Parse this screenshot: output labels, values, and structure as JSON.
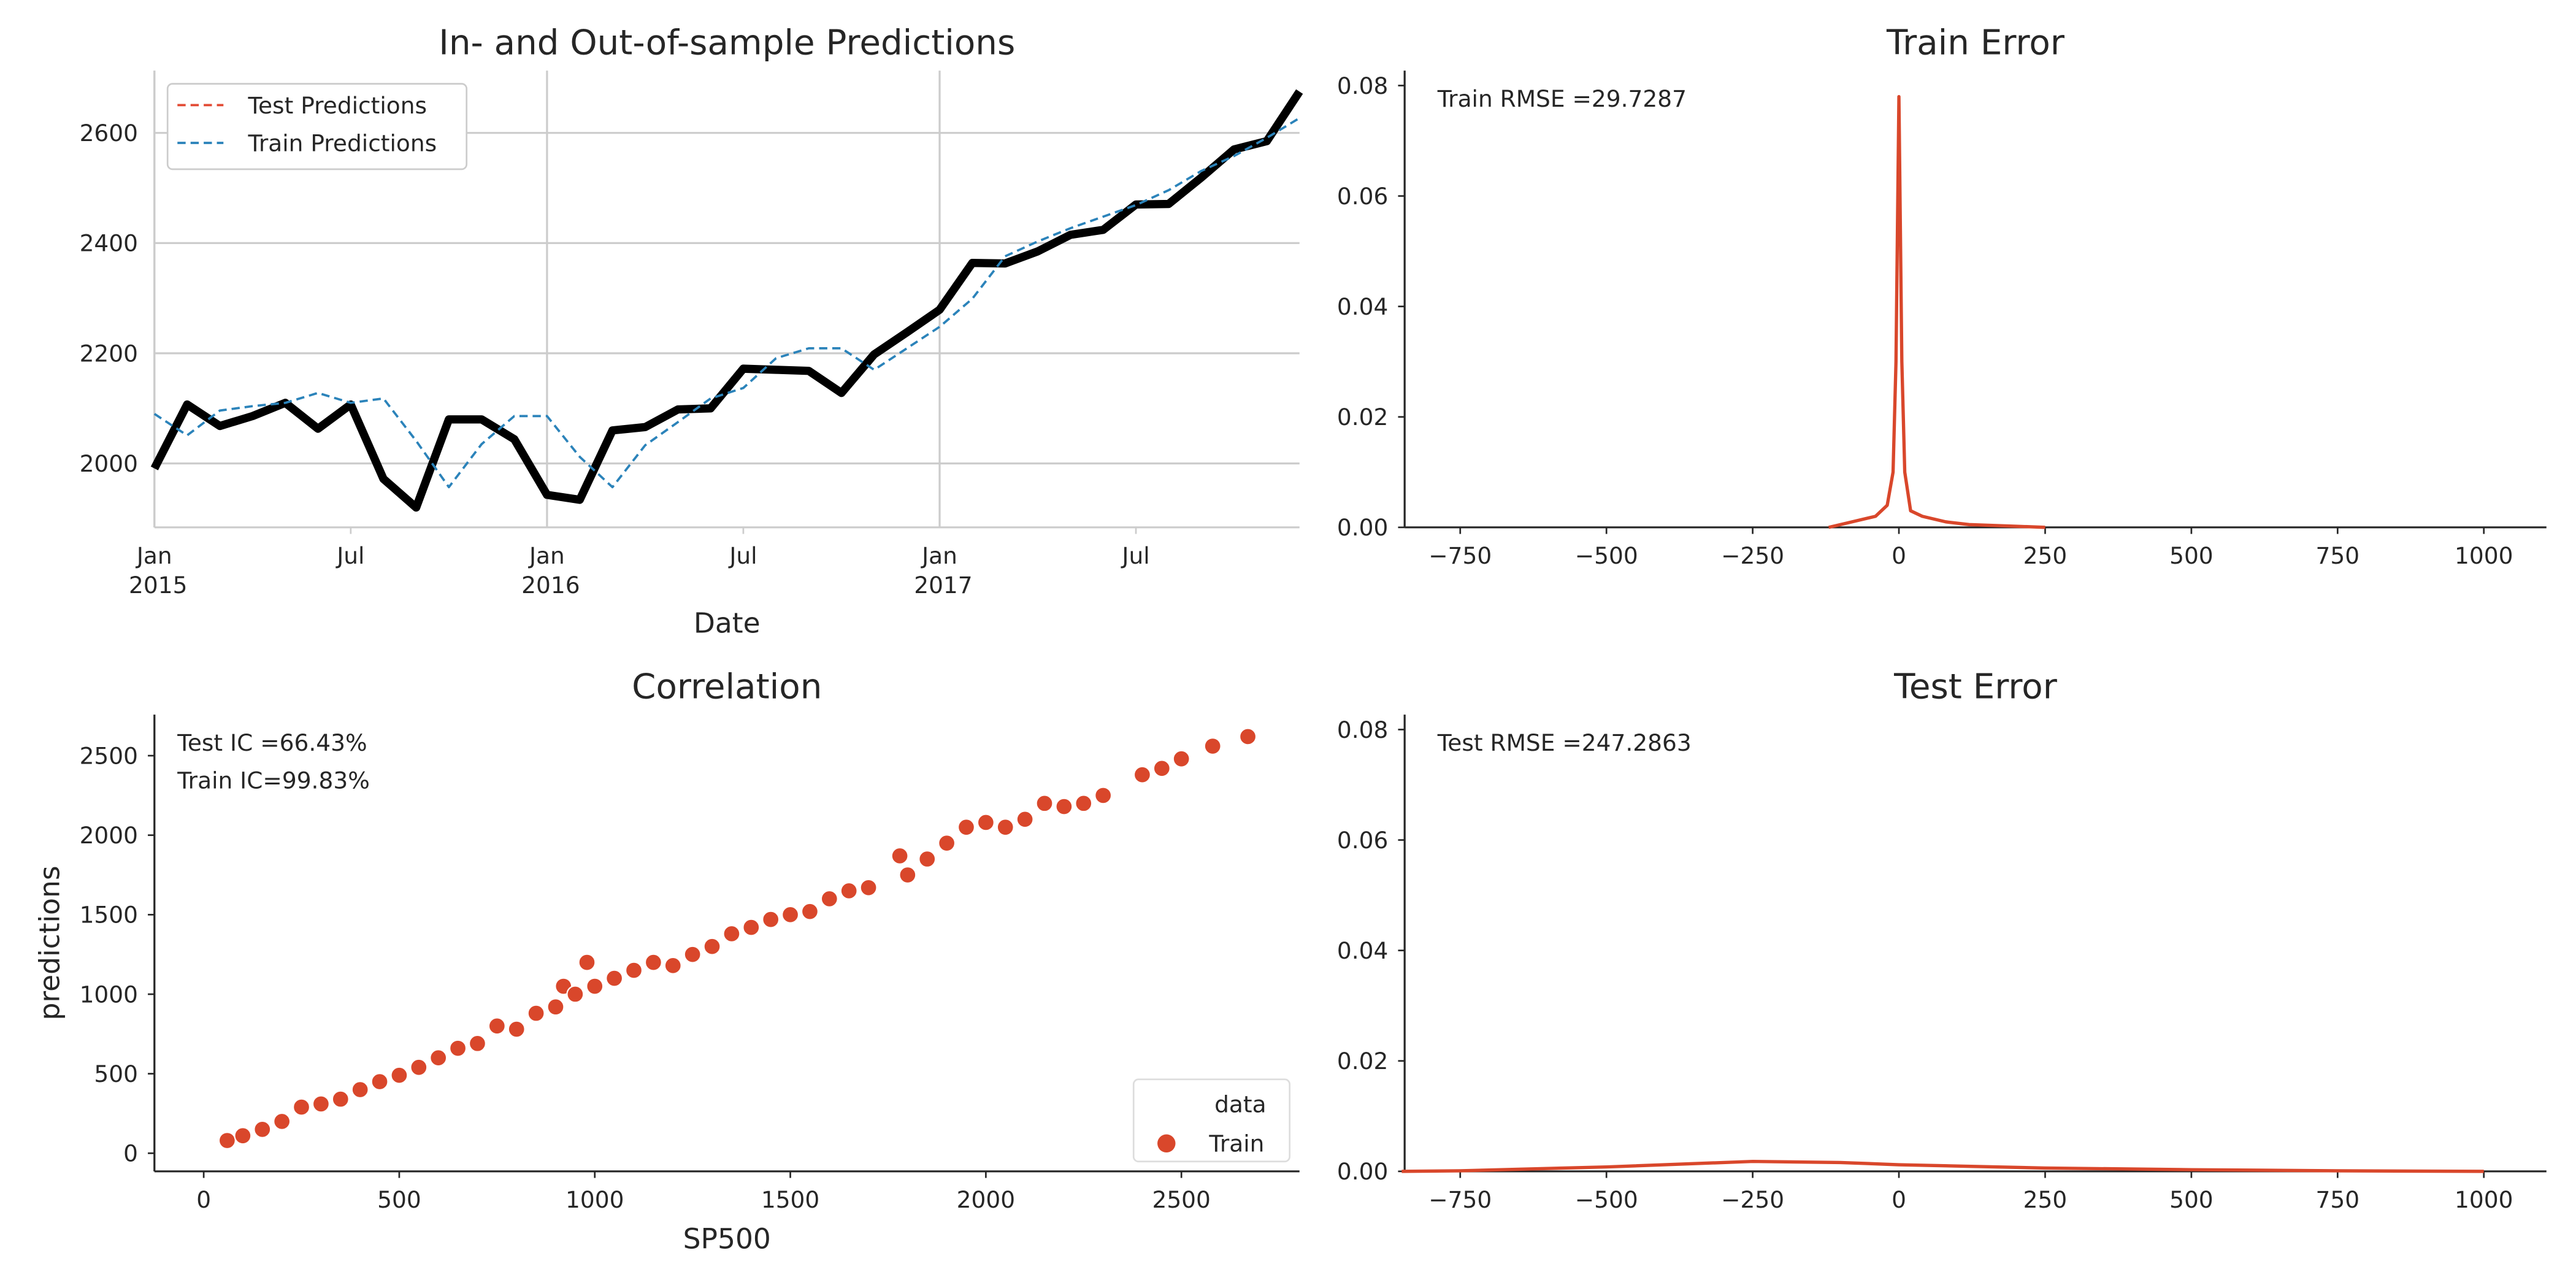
{
  "chart_data": [
    {
      "type": "line",
      "title": "In- and Out-of-sample Predictions",
      "x_label": "Date",
      "x": [
        "2015-01",
        "2015-02",
        "2015-03",
        "2015-04",
        "2015-05",
        "2015-06",
        "2015-07",
        "2015-08",
        "2015-09",
        "2015-10",
        "2015-11",
        "2015-12",
        "2016-01",
        "2016-02",
        "2016-03",
        "2016-04",
        "2016-05",
        "2016-06",
        "2016-07",
        "2016-08",
        "2016-09",
        "2016-10",
        "2016-11",
        "2016-12",
        "2017-01",
        "2017-02",
        "2017-03",
        "2017-04",
        "2017-05",
        "2017-06",
        "2017-07",
        "2017-08",
        "2017-09",
        "2017-10",
        "2017-11",
        "2017-12"
      ],
      "series": [
        {
          "color": "#000000",
          "values": [
            1991,
            2107,
            2068,
            2086,
            2110,
            2063,
            2107,
            1972,
            1920,
            2080,
            2080,
            2044,
            1943,
            1934,
            2060,
            2066,
            2098,
            2100,
            2172,
            2170,
            2168,
            2128,
            2198,
            2238,
            2279,
            2364,
            2363,
            2385,
            2415,
            2424,
            2470,
            2471,
            2519,
            2570,
            2585,
            2675
          ]
        },
        {
          "name": "Test Predictions",
          "color": "#e24a33",
          "linestyle": "dashed",
          "values": [
            null,
            null,
            null,
            null,
            null,
            null,
            null,
            null,
            null,
            null,
            null,
            null,
            null,
            null,
            null,
            null,
            null,
            null,
            null,
            null,
            null,
            null,
            null,
            null,
            null,
            null,
            null,
            null,
            null,
            null,
            null,
            null,
            null,
            null,
            null,
            null
          ]
        },
        {
          "name": "Train Predictions",
          "color": "#2b83ba",
          "linestyle": "dashed",
          "values": [
            2090,
            2051,
            2096,
            2104,
            2110,
            2128,
            2110,
            2118,
            2041,
            1957,
            2035,
            2086,
            2086,
            2012,
            1957,
            2033,
            2075,
            2118,
            2137,
            2191,
            2209,
            2209,
            2170,
            2209,
            2248,
            2299,
            2376,
            2403,
            2427,
            2448,
            2469,
            2496,
            2531,
            2558,
            2591,
            2627
          ]
        }
      ],
      "xlim": [
        "2015-01",
        "2017-12"
      ],
      "xticks": [
        {
          "value": "2015-01",
          "label": "Jan 2015"
        },
        {
          "value": "2015-07",
          "label": "Jul"
        },
        {
          "value": "2016-01",
          "label": "Jan 2016"
        },
        {
          "value": "2016-07",
          "label": "Jul"
        },
        {
          "value": "2017-01",
          "label": "Jan 2017"
        },
        {
          "value": "2017-07",
          "label": "Jul"
        }
      ],
      "ylim": [
        1884,
        2713
      ],
      "yticks": [
        2000,
        2200,
        2400,
        2600
      ],
      "grid": true,
      "legend": "upper left"
    },
    {
      "type": "line",
      "title": "Train Error",
      "annotations": [
        "Train RMSE =29.7287"
      ],
      "x": [
        -120,
        -80,
        -40,
        -20,
        -10,
        -5,
        0,
        5,
        10,
        20,
        40,
        80,
        120,
        200,
        250
      ],
      "series": [
        {
          "color": "#d9472b",
          "values": [
            0,
            0.001,
            0.002,
            0.004,
            0.01,
            0.03,
            0.078,
            0.03,
            0.01,
            0.003,
            0.002,
            0.001,
            0.0005,
            0.0002,
            0
          ]
        }
      ],
      "xlim": [
        -845,
        1107
      ],
      "xticks": [
        {
          "value": -750,
          "label": "−750"
        },
        {
          "value": -500,
          "label": "−500"
        },
        {
          "value": -250,
          "label": "−250"
        },
        0,
        250,
        500,
        750,
        1000
      ],
      "ylim": [
        0,
        0.0827
      ],
      "yticks": [
        {
          "value": 0,
          "label": "0.00"
        },
        {
          "value": 0.02,
          "label": "0.02"
        },
        {
          "value": 0.04,
          "label": "0.04"
        },
        {
          "value": 0.06,
          "label": "0.06"
        },
        {
          "value": 0.08,
          "label": "0.08"
        }
      ],
      "grid": false
    },
    {
      "type": "scatter",
      "title": "Correlation",
      "x_label": "SP500",
      "y_label": "predictions",
      "annotations": [
        "Test IC =66.43%",
        "Train IC=99.83%"
      ],
      "x": [
        60,
        100,
        150,
        200,
        250,
        300,
        350,
        400,
        450,
        500,
        550,
        600,
        650,
        700,
        750,
        800,
        850,
        900,
        920,
        950,
        980,
        1000,
        1050,
        1100,
        1150,
        1200,
        1250,
        1300,
        1350,
        1400,
        1450,
        1500,
        1550,
        1600,
        1650,
        1700,
        1780,
        1800,
        1850,
        1900,
        1950,
        2000,
        2050,
        2100,
        2150,
        2200,
        2250,
        2300,
        2400,
        2450,
        2500,
        2580,
        2670
      ],
      "series": [
        {
          "name": "Train",
          "color": "#d9472b",
          "values": [
            80,
            110,
            150,
            200,
            290,
            310,
            340,
            400,
            450,
            490,
            540,
            600,
            660,
            690,
            800,
            780,
            880,
            920,
            1050,
            1000,
            1200,
            1050,
            1100,
            1150,
            1200,
            1180,
            1250,
            1300,
            1380,
            1420,
            1470,
            1500,
            1520,
            1600,
            1650,
            1670,
            1870,
            1750,
            1850,
            1950,
            2050,
            2080,
            2050,
            2100,
            2200,
            2180,
            2200,
            2250,
            2380,
            2420,
            2480,
            2560,
            2620
          ]
        }
      ],
      "legend_title": "data",
      "legend": "lower right",
      "xlim": [
        -126,
        2802
      ],
      "xticks": [
        0,
        500,
        1000,
        1500,
        2000,
        2500
      ],
      "ylim": [
        -114,
        2758
      ],
      "yticks": [
        0,
        500,
        1000,
        1500,
        2000,
        2500
      ],
      "grid": false
    },
    {
      "type": "line",
      "title": "Test Error",
      "annotations": [
        "Test RMSE =247.2863"
      ],
      "x": [
        -850,
        -750,
        -500,
        -250,
        -100,
        0,
        250,
        500,
        750,
        1000
      ],
      "series": [
        {
          "color": "#d9472b",
          "values": [
            0,
            0.0001,
            0.0008,
            0.0018,
            0.0016,
            0.0012,
            0.0006,
            0.0003,
            0.0001,
            0
          ]
        }
      ],
      "xlim": [
        -845,
        1107
      ],
      "xticks": [
        {
          "value": -750,
          "label": "−750"
        },
        {
          "value": -500,
          "label": "−500"
        },
        {
          "value": -250,
          "label": "−250"
        },
        0,
        250,
        500,
        750,
        1000
      ],
      "ylim": [
        0,
        0.0827
      ],
      "yticks": [
        {
          "value": 0,
          "label": "0.00"
        },
        {
          "value": 0.02,
          "label": "0.02"
        },
        {
          "value": 0.04,
          "label": "0.04"
        },
        {
          "value": 0.06,
          "label": "0.06"
        },
        {
          "value": 0.08,
          "label": "0.08"
        }
      ],
      "grid": false
    }
  ]
}
